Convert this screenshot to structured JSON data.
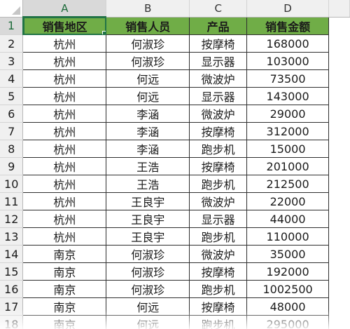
{
  "columns": [
    "A",
    "B",
    "C",
    "D"
  ],
  "selected_cell": "A1",
  "header_fill_color": "#70ad47",
  "rows": [
    {
      "num": "1",
      "cells": [
        "销售地区",
        "销售人员",
        "产品",
        "销售金额"
      ]
    },
    {
      "num": "2",
      "cells": [
        "杭州",
        "何淑珍",
        "按摩椅",
        "168000"
      ]
    },
    {
      "num": "3",
      "cells": [
        "杭州",
        "何淑珍",
        "显示器",
        "103000"
      ]
    },
    {
      "num": "4",
      "cells": [
        "杭州",
        "何远",
        "微波炉",
        "73500"
      ]
    },
    {
      "num": "5",
      "cells": [
        "杭州",
        "何远",
        "显示器",
        "143000"
      ]
    },
    {
      "num": "6",
      "cells": [
        "杭州",
        "李涵",
        "微波炉",
        "29000"
      ]
    },
    {
      "num": "7",
      "cells": [
        "杭州",
        "李涵",
        "按摩椅",
        "312000"
      ]
    },
    {
      "num": "8",
      "cells": [
        "杭州",
        "李涵",
        "跑步机",
        "15000"
      ]
    },
    {
      "num": "9",
      "cells": [
        "杭州",
        "王浩",
        "按摩椅",
        "201000"
      ]
    },
    {
      "num": "10",
      "cells": [
        "杭州",
        "王浩",
        "跑步机",
        "212500"
      ]
    },
    {
      "num": "11",
      "cells": [
        "杭州",
        "王良宇",
        "微波炉",
        "22000"
      ]
    },
    {
      "num": "12",
      "cells": [
        "杭州",
        "王良宇",
        "显示器",
        "44000"
      ]
    },
    {
      "num": "13",
      "cells": [
        "杭州",
        "王良宇",
        "跑步机",
        "110000"
      ]
    },
    {
      "num": "14",
      "cells": [
        "南京",
        "何淑珍",
        "微波炉",
        "35000"
      ]
    },
    {
      "num": "15",
      "cells": [
        "南京",
        "何淑珍",
        "按摩椅",
        "192000"
      ]
    },
    {
      "num": "16",
      "cells": [
        "南京",
        "何淑珍",
        "跑步机",
        "1002500"
      ]
    },
    {
      "num": "17",
      "cells": [
        "南京",
        "何远",
        "按摩椅",
        "48000"
      ]
    },
    {
      "num": "18",
      "cells": [
        "南京",
        "何远",
        "跑步机",
        "295000"
      ]
    }
  ]
}
